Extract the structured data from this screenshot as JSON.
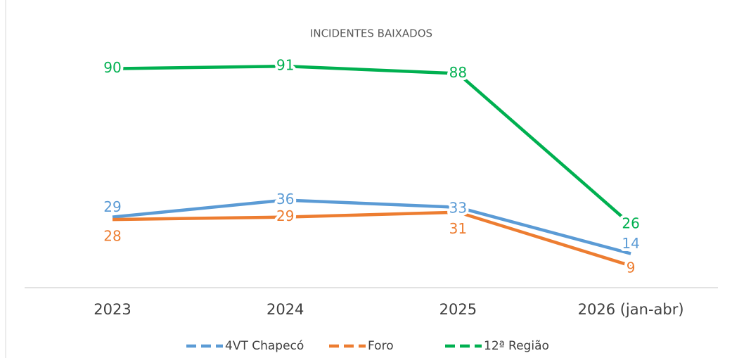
{
  "chart_data": {
    "type": "line",
    "title": "INCIDENTES BAIXADOS",
    "categories": [
      "2023",
      "2024",
      "2025",
      "2026 (jan-abr)"
    ],
    "series": [
      {
        "name": "4VT Chapecó",
        "color": "#5b9bd5",
        "values": [
          29,
          36,
          33,
          14
        ]
      },
      {
        "name": "Foro",
        "color": "#ed7d31",
        "values": [
          28,
          29,
          31,
          9
        ]
      },
      {
        "name": "12ª Região",
        "color": "#00b050",
        "values": [
          90,
          91,
          88,
          26
        ]
      }
    ],
    "ylim": [
      0,
      100
    ],
    "legend": "bottom"
  }
}
